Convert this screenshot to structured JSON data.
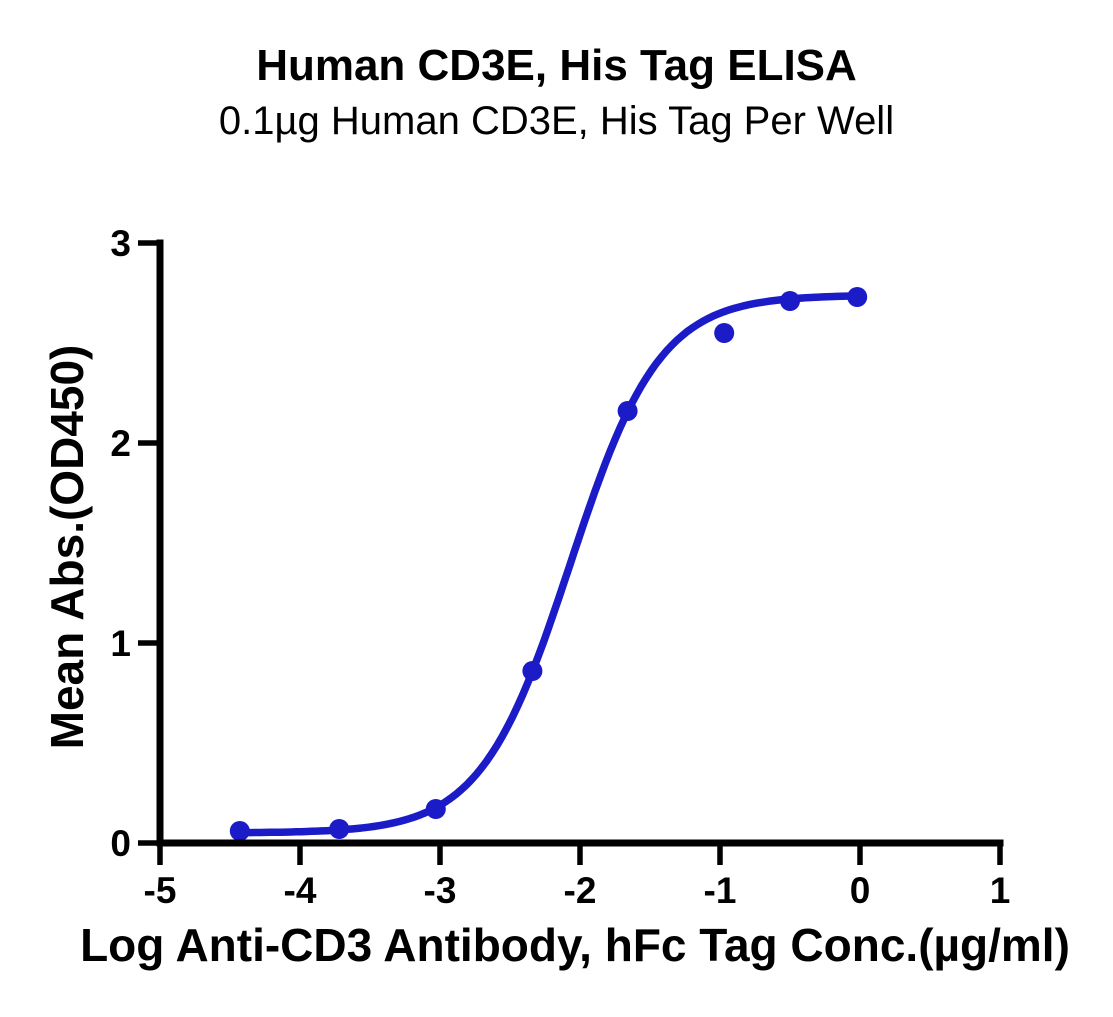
{
  "chart_data": {
    "type": "scatter",
    "title": "Human CD3E, His Tag ELISA",
    "subtitle": "0.1µg Human CD3E, His Tag Per Well",
    "xlabel": "Log Anti-CD3 Antibody, hFc Tag Conc.(µg/ml)",
    "ylabel": "Mean Abs.(OD450)",
    "xlim": [
      -5,
      1
    ],
    "ylim": [
      0,
      3
    ],
    "x_ticks": [
      -5,
      -4,
      -3,
      -2,
      -1,
      0,
      1
    ],
    "y_ticks": [
      0,
      1,
      2,
      3
    ],
    "grid": false,
    "legend_position": "none",
    "axis_color": "#000000",
    "series": [
      {
        "color": "#1B1BC8",
        "marker": "circle",
        "points": [
          {
            "x": -4.43,
            "y": 0.06
          },
          {
            "x": -3.72,
            "y": 0.07
          },
          {
            "x": -3.03,
            "y": 0.17
          },
          {
            "x": -2.34,
            "y": 0.86
          },
          {
            "x": -1.66,
            "y": 2.16
          },
          {
            "x": -0.97,
            "y": 2.55
          },
          {
            "x": -0.5,
            "y": 2.71
          },
          {
            "x": -0.02,
            "y": 2.73
          }
        ],
        "fit": {
          "model": "4PL",
          "bottom": 0.05,
          "top": 2.74,
          "logEC50": -2.07,
          "hill": 1.36
        }
      }
    ]
  }
}
